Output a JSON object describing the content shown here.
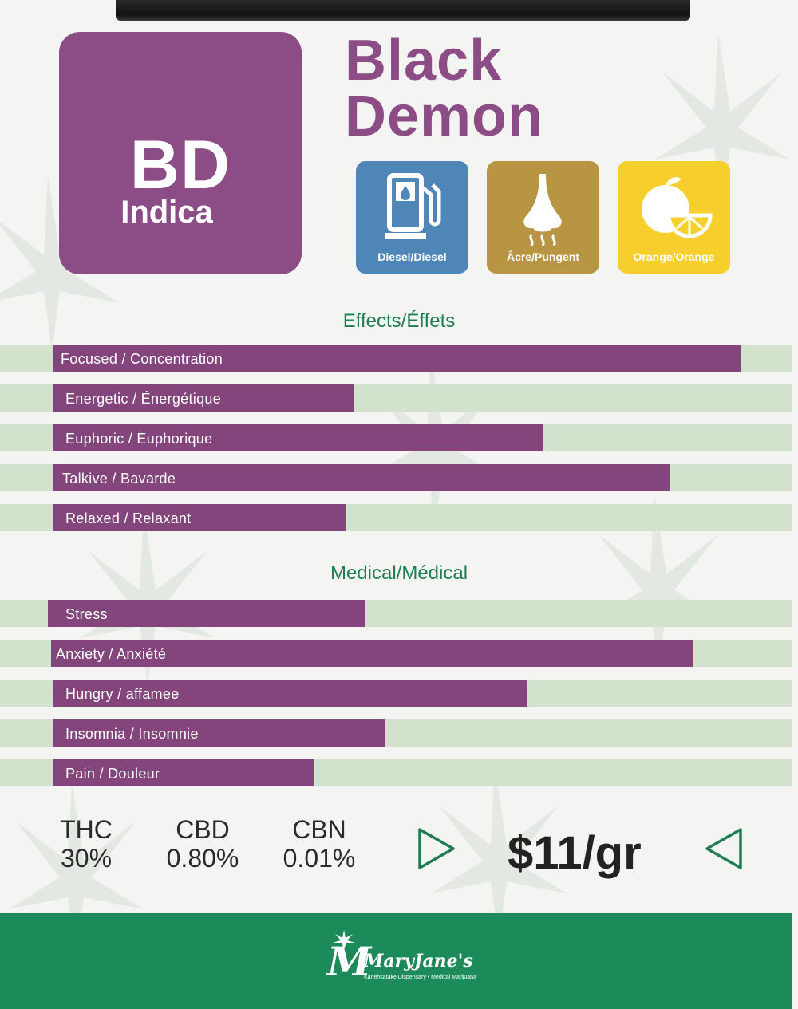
{
  "strain": {
    "abbreviation": "BD",
    "type": "Indica",
    "name_line1": "Black",
    "name_line2": "Demon"
  },
  "flavors": [
    {
      "label": "Diesel/Diesel",
      "icon": "fuel-pump-icon",
      "color": "#4f86b8"
    },
    {
      "label": "Âcre/Pungent",
      "icon": "nose-icon",
      "color": "#b89542"
    },
    {
      "label": "Orange/Orange",
      "icon": "orange-icon",
      "color": "#f6cf2c"
    }
  ],
  "effects": {
    "title": "Effects/Éffets",
    "items": [
      {
        "label": "Focused / Concentration",
        "level": 0.87
      },
      {
        "label": "Energetic / Énergétique",
        "level": 0.38
      },
      {
        "label": "Euphoric / Euphorique",
        "level": 0.62
      },
      {
        "label": "Talkive / Bavarde",
        "level": 0.78
      },
      {
        "label": "Relaxed / Relaxant",
        "level": 0.37
      }
    ]
  },
  "medical": {
    "title": "Medical/Médical",
    "items": [
      {
        "label": "Stress",
        "level": 0.4
      },
      {
        "label": "Anxiety / Anxiété",
        "level": 0.81
      },
      {
        "label": "Hungry / affamee",
        "level": 0.6
      },
      {
        "label": "Insomnia / Insomnie",
        "level": 0.42
      },
      {
        "label": "Pain / Douleur",
        "level": 0.33
      }
    ]
  },
  "stats": [
    {
      "name": "THC",
      "value": "30%"
    },
    {
      "name": "CBD",
      "value": "0.80%"
    },
    {
      "name": "CBN",
      "value": "0.01%"
    }
  ],
  "price": "$11/gr",
  "footer": {
    "logo_mark": "M",
    "brand": "MaryJane's",
    "tagline": "Kanehsatake Dispensary • Medical Marijuana"
  },
  "colors": {
    "brand_purple": "#8c4d87",
    "bar_track": "#d3e2cc",
    "heading_green": "#1e7d53",
    "footer_green": "#1d8a5a"
  }
}
